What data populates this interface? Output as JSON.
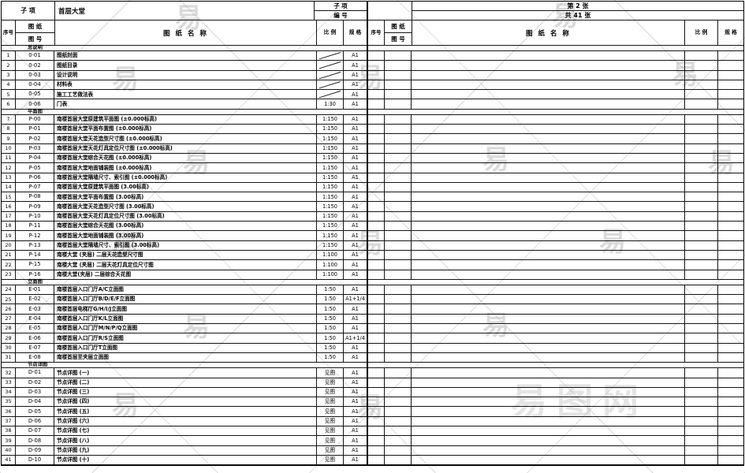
{
  "watermark": {
    "logo_char": "易",
    "site_text": "易图网"
  },
  "left_table": {
    "subitem_label": "子  项",
    "subitem_value": "首层大堂",
    "subitem_label_right": "子  项",
    "number_label": "编  号",
    "columns": {
      "serial": "序号",
      "sheet": "图  纸",
      "number": "图  号",
      "name": "图 纸 名 称",
      "scale": "比 例",
      "spec": "规 格"
    }
  },
  "right_table": {
    "sheet_no": "第 2 张",
    "sheet_total": "共 41 张",
    "columns": {
      "serial": "序号",
      "sheet": "图  纸",
      "number": "图  号",
      "name": "图 纸 名 称",
      "scale": "比 例",
      "spec": "规 格"
    }
  },
  "sections": [
    {
      "title": "总说明",
      "rows": [
        {
          "idx": "1",
          "no": "0-01",
          "name": "图纸封面",
          "scale": "/",
          "spec": "A1"
        },
        {
          "idx": "2",
          "no": "0-02",
          "name": "图纸目录",
          "scale": "/",
          "spec": "A1"
        },
        {
          "idx": "3",
          "no": "0-03",
          "name": "设计说明",
          "scale": "/",
          "spec": "A1"
        },
        {
          "idx": "4",
          "no": "0-04",
          "name": "材料表",
          "scale": "/",
          "spec": "A1"
        },
        {
          "idx": "5",
          "no": "0-05",
          "name": "施工工艺做法表",
          "scale": "/",
          "spec": "A1"
        },
        {
          "idx": "6",
          "no": "0-06",
          "name": "门表",
          "scale": "1:30",
          "spec": "A1"
        }
      ]
    },
    {
      "title": "平面图",
      "rows": [
        {
          "idx": "7",
          "no": "P-00",
          "name": "南楼首层大堂原建筑平面图 (±0.000标高)",
          "scale": "1:150",
          "spec": "A1"
        },
        {
          "idx": "8",
          "no": "P-01",
          "name": "南楼首层大堂平面布置图 (±0.000标高)",
          "scale": "1:150",
          "spec": "A1"
        },
        {
          "idx": "9",
          "no": "P-02",
          "name": "南楼首层大堂天花造型尺寸图 (±0.000标高)",
          "scale": "1:150",
          "spec": "A1"
        },
        {
          "idx": "10",
          "no": "P-03",
          "name": "南楼首层大堂天花灯具定位尺寸图 (±0.000标高)",
          "scale": "1:150",
          "spec": "A1"
        },
        {
          "idx": "11",
          "no": "P-04",
          "name": "南楼首层大堂综合天花图 (±0.000标高)",
          "scale": "1:150",
          "spec": "A1"
        },
        {
          "idx": "12",
          "no": "P-05",
          "name": "南楼首层大堂地面铺装图 (±0.000标高)",
          "scale": "1:150",
          "spec": "A1"
        },
        {
          "idx": "13",
          "no": "P-06",
          "name": "南楼首层大堂隔墙尺寸、索引图 (±0.000标高)",
          "scale": "1:150",
          "spec": "A1"
        },
        {
          "idx": "14",
          "no": "P-07",
          "name": "南楼首层大堂原建筑平面图 (3.00标高)",
          "scale": "1:150",
          "spec": "A1"
        },
        {
          "idx": "15",
          "no": "P-08",
          "name": "南楼首层大堂平面布置图 (3.00标高)",
          "scale": "1:150",
          "spec": "A1"
        },
        {
          "idx": "16",
          "no": "P-09",
          "name": "南楼首层大堂天花造型尺寸图 (3.00标高)",
          "scale": "1:150",
          "spec": "A1"
        },
        {
          "idx": "17",
          "no": "P-10",
          "name": "南楼首层大堂天花灯具定位尺寸图 (3.00标高)",
          "scale": "1:150",
          "spec": "A1"
        },
        {
          "idx": "18",
          "no": "P-11",
          "name": "南楼首层大堂综合天花图 (3.00标高)",
          "scale": "1:150",
          "spec": "A1"
        },
        {
          "idx": "19",
          "no": "P-12",
          "name": "南楼首层大堂地面铺装图 (3.00标高)",
          "scale": "1:150",
          "spec": "A1"
        },
        {
          "idx": "20",
          "no": "P-13",
          "name": "南楼首层大堂隔墙尺寸、索引图 (3.00标高)",
          "scale": "1:150",
          "spec": "A1"
        },
        {
          "idx": "21",
          "no": "P-14",
          "name": "南楼大堂 (夹层) 二层天花造型尺寸图",
          "scale": "1:100",
          "spec": "A1"
        },
        {
          "idx": "22",
          "no": "P-15",
          "name": "南楼大堂 (夹层) 二层天花灯具定位尺寸图",
          "scale": "1:100",
          "spec": "A1"
        },
        {
          "idx": "23",
          "no": "P-16",
          "name": "南楼大堂(夹层) 二层综合天花图",
          "scale": "1:100",
          "spec": "A1"
        }
      ]
    },
    {
      "title": "立面图",
      "rows": [
        {
          "idx": "24",
          "no": "E-01",
          "name": "南楼首层入口门厅A/C立面图",
          "scale": "1:50",
          "spec": "A1"
        },
        {
          "idx": "25",
          "no": "E-02",
          "name": "南楼首层入口门厅B/D/E/F立面图",
          "scale": "1:50",
          "spec": "A1+1/4"
        },
        {
          "idx": "26",
          "no": "E-03",
          "name": "南楼首层电梯厅G/H/I/J立面图",
          "scale": "1:50",
          "spec": "A1"
        },
        {
          "idx": "27",
          "no": "E-04",
          "name": "南楼首层入口门厅K/L立面图",
          "scale": "1:50",
          "spec": "A1"
        },
        {
          "idx": "28",
          "no": "E-05",
          "name": "南楼首层入口门厅M/N/P/Q立面图",
          "scale": "1:50",
          "spec": "A1"
        },
        {
          "idx": "29",
          "no": "E-06",
          "name": "南楼首层入口门厅R/S立面图",
          "scale": "1:50",
          "spec": "A1+1/4"
        },
        {
          "idx": "30",
          "no": "E-07",
          "name": "南楼首层入口门厅T立面图",
          "scale": "1:50",
          "spec": "A1"
        },
        {
          "idx": "31",
          "no": "E-08",
          "name": "南楼首层至夹层立面图",
          "scale": "1:50",
          "spec": "A1"
        }
      ]
    },
    {
      "title": "节点详图",
      "rows": [
        {
          "idx": "32",
          "no": "D-01",
          "name": "节点详图 (一)",
          "scale": "见图",
          "spec": "A1"
        },
        {
          "idx": "33",
          "no": "D-02",
          "name": "节点详图 (二)",
          "scale": "见图",
          "spec": "A1"
        },
        {
          "idx": "34",
          "no": "D-03",
          "name": "节点详图 (三)",
          "scale": "见图",
          "spec": "A1"
        },
        {
          "idx": "35",
          "no": "D-04",
          "name": "节点详图 (四)",
          "scale": "见图",
          "spec": "A1"
        },
        {
          "idx": "36",
          "no": "D-05",
          "name": "节点详图 (五)",
          "scale": "见图",
          "spec": "A1"
        },
        {
          "idx": "37",
          "no": "D-06",
          "name": "节点详图 (六)",
          "scale": "见图",
          "spec": "A1"
        },
        {
          "idx": "38",
          "no": "D-07",
          "name": "节点详图 (七)",
          "scale": "见图",
          "spec": "A1"
        },
        {
          "idx": "39",
          "no": "D-08",
          "name": "节点详图 (八)",
          "scale": "见图",
          "spec": "A1"
        },
        {
          "idx": "40",
          "no": "D-09",
          "name": "节点详图 (九)",
          "scale": "见图",
          "spec": "A1"
        },
        {
          "idx": "41",
          "no": "D-10",
          "name": "节点详图 (十)",
          "scale": "见图",
          "spec": "A1"
        }
      ]
    }
  ]
}
